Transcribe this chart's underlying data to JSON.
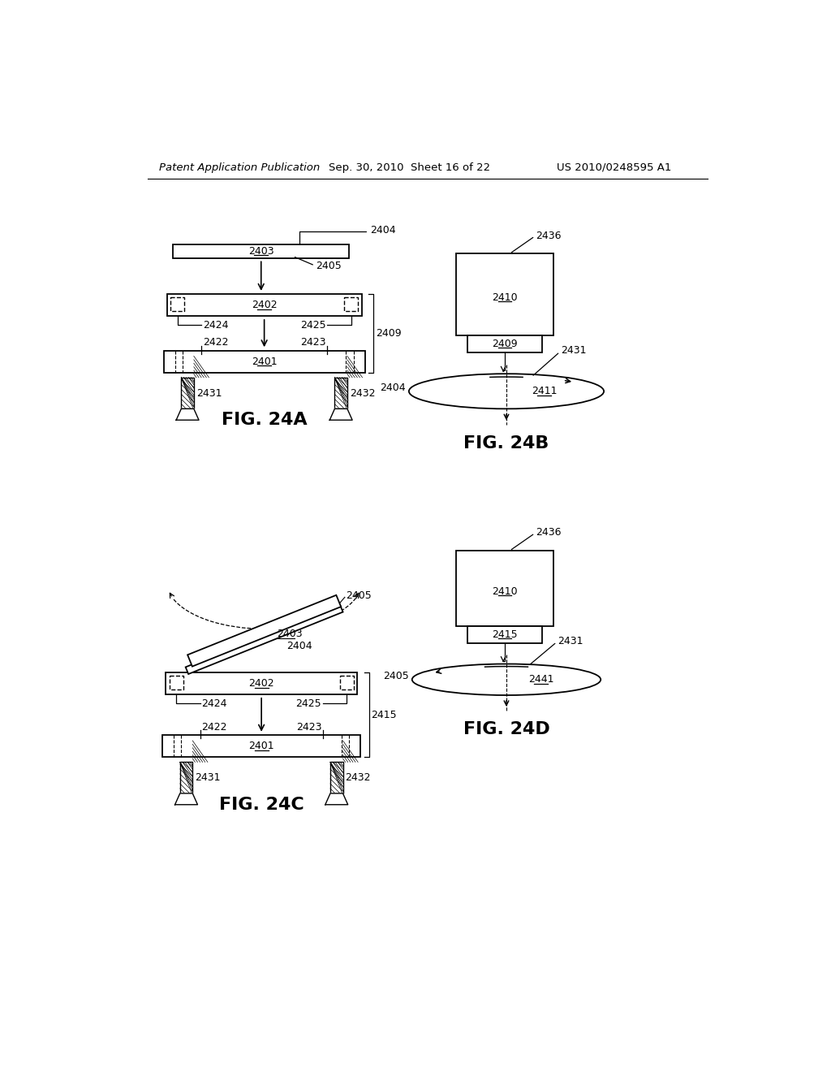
{
  "title_left": "Patent Application Publication",
  "title_center": "Sep. 30, 2010  Sheet 16 of 22",
  "title_right": "US 2010/0248595 A1",
  "bg_color": "#ffffff",
  "line_color": "#000000",
  "label_fontsize": 9,
  "fig_label_fontsize": 16,
  "header_fontsize": 9
}
